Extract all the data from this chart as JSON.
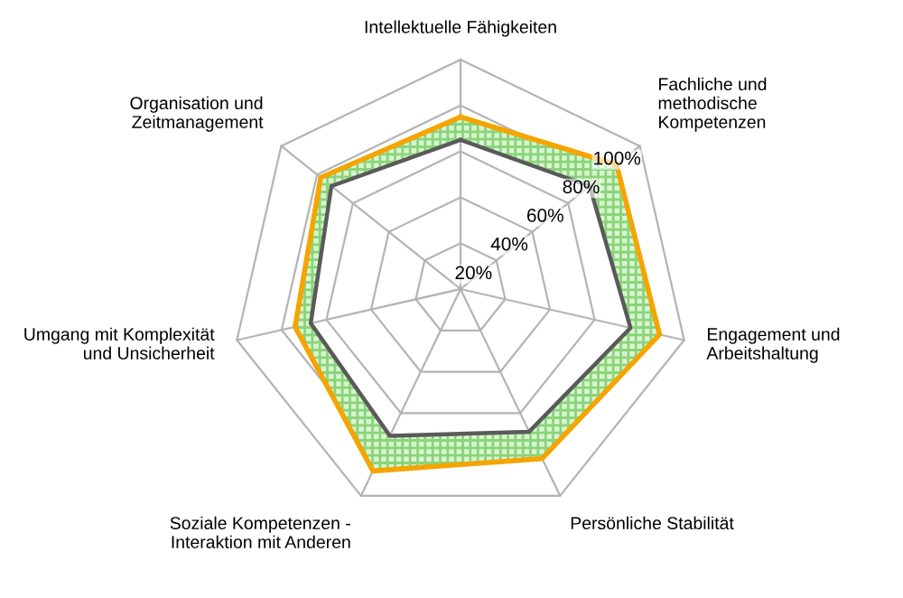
{
  "chart_data": {
    "type": "radar",
    "categories": [
      "Intellektuelle Fähigkeiten",
      "Fachliche und\nmethodische\nKompetenzen",
      "Engagement und\nArbeitshaltung",
      "Persönliche Stabilität",
      "Soziale Kompetenzen -\nInteraktion mit Anderen",
      "Umgang mit Komplexität\nund Unsicherheit",
      "Organisation und\nZeitmanagement"
    ],
    "series": [
      {
        "color": "#f5a400",
        "values": [
          75,
          87,
          89,
          82,
          88,
          74,
          78
        ]
      },
      {
        "color": "#5a5a5a",
        "values": [
          65,
          72,
          76,
          69,
          71,
          67,
          72
        ]
      }
    ],
    "ylim": [
      0,
      100
    ],
    "yticks": [
      {
        "value": 20,
        "label": "20%"
      },
      {
        "value": 40,
        "label": "40%"
      },
      {
        "value": 60,
        "label": "60%"
      },
      {
        "value": 80,
        "label": "80%"
      },
      {
        "value": 100,
        "label": "100%"
      }
    ],
    "grid": true
  }
}
